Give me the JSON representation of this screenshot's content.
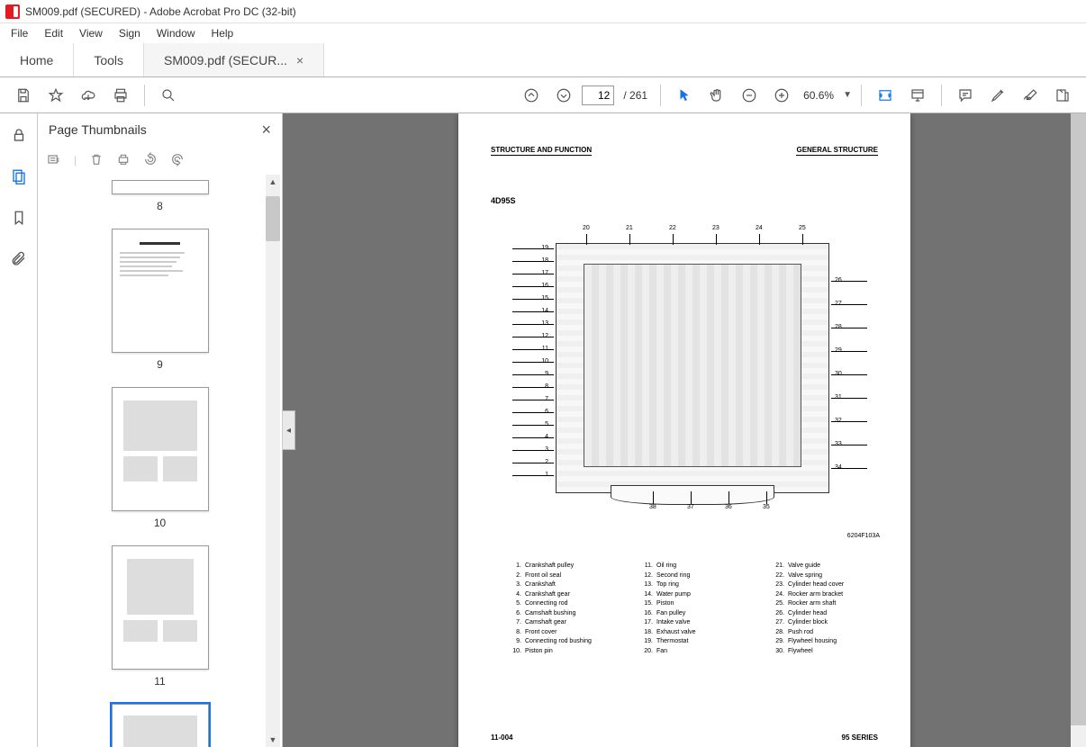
{
  "window": {
    "title": "SM009.pdf (SECURED) - Adobe Acrobat Pro DC (32-bit)"
  },
  "menu": {
    "file": "File",
    "edit": "Edit",
    "view": "View",
    "sign": "Sign",
    "windowm": "Window",
    "help": "Help"
  },
  "tabs": {
    "home": "Home",
    "tools": "Tools",
    "doc": "SM009.pdf (SECUR..."
  },
  "toolbar": {
    "page": "12",
    "total": "/ 261",
    "zoom": "60.6%"
  },
  "panel": {
    "title": "Page Thumbnails"
  },
  "thumbs": {
    "p8": "8",
    "p9": "9",
    "p10": "10",
    "p11": "11"
  },
  "doc": {
    "hd_l": "STRUCTURE AND FUNCTION",
    "hd_r": "GENERAL STRUCTURE",
    "model": "4D95S",
    "figref": "6204F103A",
    "ft_l": "11-004",
    "ft_r": "95 SERIES",
    "callouts_left": [
      "19",
      "18",
      "17",
      "16",
      "15",
      "14",
      "13",
      "12",
      "11",
      "10",
      "9",
      "8",
      "7",
      "6",
      "5",
      "4",
      "3",
      "2",
      "1"
    ],
    "callouts_top": [
      "20",
      "21",
      "22",
      "23",
      "24",
      "25"
    ],
    "callouts_right": [
      "26",
      "27",
      "28",
      "29",
      "30",
      "31",
      "32",
      "33",
      "34"
    ],
    "callouts_bottom": [
      "38",
      "37",
      "36",
      "35"
    ],
    "legend": [
      [
        {
          "n": "1.",
          "t": "Crankshaft pulley"
        },
        {
          "n": "2.",
          "t": "Front oil seal"
        },
        {
          "n": "3.",
          "t": "Crankshaft"
        },
        {
          "n": "4.",
          "t": "Crankshaft gear"
        },
        {
          "n": "5.",
          "t": "Connecting rod"
        },
        {
          "n": "6.",
          "t": "Camshaft bushing"
        },
        {
          "n": "7.",
          "t": "Camshaft gear"
        },
        {
          "n": "8.",
          "t": "Front cover"
        },
        {
          "n": "9.",
          "t": "Connecting rod bushing"
        },
        {
          "n": "10.",
          "t": "Piston pin"
        }
      ],
      [
        {
          "n": "11.",
          "t": "Oil ring"
        },
        {
          "n": "12.",
          "t": "Second ring"
        },
        {
          "n": "13.",
          "t": "Top ring"
        },
        {
          "n": "14.",
          "t": "Water pump"
        },
        {
          "n": "15.",
          "t": "Piston"
        },
        {
          "n": "16.",
          "t": "Fan pulley"
        },
        {
          "n": "17.",
          "t": "Intake valve"
        },
        {
          "n": "18.",
          "t": "Exhaust valve"
        },
        {
          "n": "19.",
          "t": "Thermostat"
        },
        {
          "n": "20.",
          "t": "Fan"
        }
      ],
      [
        {
          "n": "21.",
          "t": "Valve guide"
        },
        {
          "n": "22.",
          "t": "Valve spring"
        },
        {
          "n": "23.",
          "t": "Cylinder head cover"
        },
        {
          "n": "24.",
          "t": "Rocker arm bracket"
        },
        {
          "n": "25.",
          "t": "Rocker arm shaft"
        },
        {
          "n": "26.",
          "t": "Cylinder head"
        },
        {
          "n": "27.",
          "t": "Cylinder block"
        },
        {
          "n": "28.",
          "t": "Push rod"
        },
        {
          "n": "29.",
          "t": "Flywheel housing"
        },
        {
          "n": "30.",
          "t": "Flywheel"
        }
      ]
    ]
  }
}
